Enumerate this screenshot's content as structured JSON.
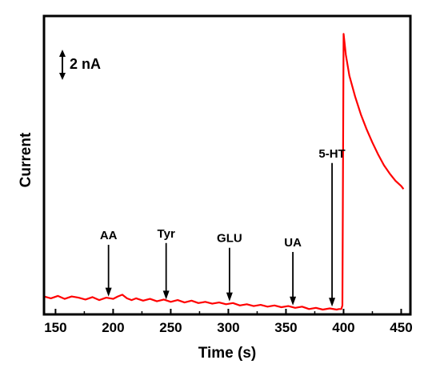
{
  "chart_data": {
    "type": "line",
    "xlabel": "Time (s)",
    "ylabel": "Current",
    "xlim": [
      140,
      458
    ],
    "ylim": [
      0,
      50
    ],
    "x_ticks": [
      150,
      200,
      250,
      300,
      350,
      400,
      450
    ],
    "grid": false,
    "legend": "none",
    "line_color": "#ff0000",
    "scale_bar": {
      "label": "2 nA",
      "size_nA": 2
    },
    "series": [
      {
        "x": [
          140,
          146,
          152,
          158,
          164,
          170,
          176,
          182,
          188,
          194,
          200,
          204,
          208,
          212,
          216,
          220,
          226,
          232,
          238,
          244,
          250,
          256,
          262,
          268,
          274,
          280,
          286,
          292,
          298,
          304,
          310,
          316,
          322,
          328,
          334,
          340,
          346,
          352,
          358,
          364,
          370,
          376,
          382,
          388,
          394,
          396,
          398,
          399,
          400,
          402,
          405,
          410,
          415,
          420,
          425,
          430,
          435,
          440,
          445,
          450,
          452
        ],
        "y": [
          3.0,
          2.7,
          3.1,
          2.6,
          3.0,
          2.8,
          2.5,
          2.9,
          2.4,
          2.8,
          2.6,
          3.0,
          3.3,
          2.7,
          2.4,
          2.7,
          2.3,
          2.6,
          2.2,
          2.5,
          2.1,
          2.4,
          2.0,
          2.3,
          1.9,
          2.1,
          1.8,
          2.0,
          1.7,
          1.9,
          1.5,
          1.7,
          1.4,
          1.6,
          1.3,
          1.5,
          1.2,
          1.4,
          1.1,
          1.3,
          0.9,
          1.1,
          0.8,
          1.0,
          0.8,
          0.9,
          0.9,
          1.5,
          47.0,
          43.5,
          40.0,
          36.5,
          33.5,
          31.0,
          28.8,
          26.8,
          25.0,
          23.6,
          22.4,
          21.5,
          21.0
        ]
      }
    ],
    "annotations": [
      {
        "label": "AA",
        "x": 196,
        "y": 2.6,
        "label_y": 12.6
      },
      {
        "label": "Tyr",
        "x": 246,
        "y": 2.1,
        "label_y": 12.9
      },
      {
        "label": "GLU",
        "x": 301,
        "y": 1.8,
        "label_y": 12.1
      },
      {
        "label": "UA",
        "x": 356,
        "y": 1.1,
        "label_y": 11.4
      },
      {
        "label": "5-HT",
        "x": 390,
        "y": 0.9,
        "label_y": 26.3
      }
    ]
  }
}
